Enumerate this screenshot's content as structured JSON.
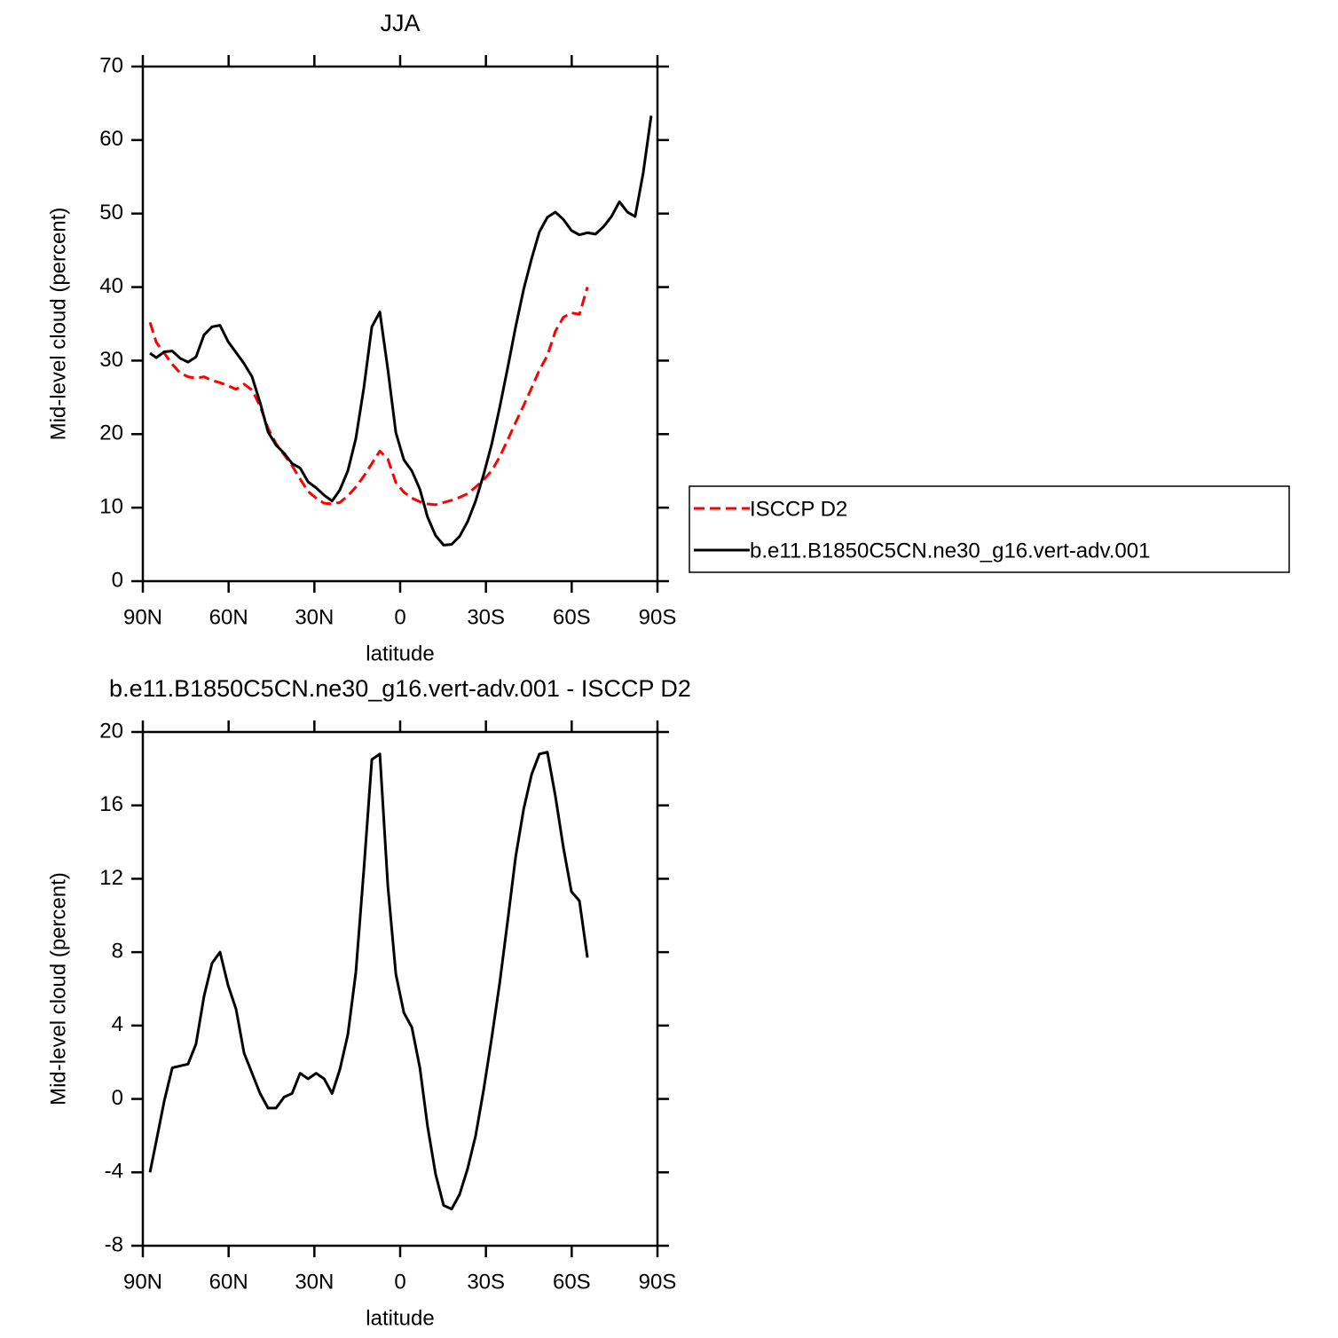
{
  "chart_data": [
    {
      "type": "line",
      "title": "JJA",
      "xlabel": "latitude",
      "ylabel": "Mid-level cloud (percent)",
      "x": [
        87.5,
        85.3,
        82.5,
        79.7,
        76.9,
        74.2,
        71.4,
        68.6,
        65.8,
        63.0,
        60.2,
        57.4,
        54.6,
        51.8,
        49.0,
        46.2,
        43.4,
        40.6,
        37.8,
        35.0,
        32.2,
        29.4,
        26.6,
        23.8,
        21.1,
        18.3,
        15.5,
        12.7,
        9.9,
        7.1,
        4.3,
        1.5,
        -1.3,
        -4.1,
        -6.9,
        -9.6,
        -12.4,
        -15.2,
        -18.0,
        -20.8,
        -23.6,
        -26.4,
        -29.2,
        -32.0,
        -34.8,
        -37.6,
        -40.4,
        -43.2,
        -46.0,
        -48.7,
        -51.5,
        -54.3,
        -57.1,
        -59.9,
        -62.7,
        -65.5,
        -68.3,
        -71.1,
        -73.9,
        -76.7,
        -79.5,
        -82.2,
        -85.0,
        -87.8
      ],
      "series": [
        {
          "name": "ISCCP D2",
          "color": "#ff0000",
          "linestyle": "dashed",
          "values": [
            35.2,
            32.5,
            31.0,
            29.5,
            28.3,
            27.8,
            27.6,
            27.8,
            27.3,
            27.0,
            26.6,
            26.1,
            26.8,
            26.0,
            23.8,
            20.8,
            18.7,
            17.2,
            15.7,
            13.9,
            12.2,
            11.3,
            10.6,
            10.5,
            10.7,
            11.6,
            12.8,
            14.3,
            16.0,
            17.7,
            16.6,
            13.4,
            12.1,
            11.3,
            10.8,
            10.5,
            10.4,
            10.7,
            11.0,
            11.4,
            11.9,
            12.8,
            13.8,
            15.0,
            16.9,
            19.2,
            21.6,
            23.9,
            26.3,
            28.7,
            30.7,
            34.0,
            35.9,
            36.5,
            36.3,
            40.0,
            null,
            null,
            null,
            null,
            null,
            null,
            null,
            null
          ]
        },
        {
          "name": "b.e11.B1850C5CN.ne30_g16.vert-adv.001",
          "color": "#000000",
          "linestyle": "solid",
          "values": [
            31.0,
            30.4,
            31.2,
            31.3,
            30.3,
            29.8,
            30.5,
            33.5,
            34.6,
            34.8,
            32.6,
            31.1,
            29.6,
            27.8,
            24.3,
            20.3,
            18.5,
            17.4,
            16.0,
            15.4,
            13.5,
            12.7,
            11.7,
            10.9,
            12.4,
            15.0,
            19.4,
            26.3,
            34.6,
            36.6,
            28.8,
            20.2,
            16.5,
            15.0,
            12.5,
            8.7,
            6.2,
            4.9,
            5.0,
            6.1,
            8.1,
            10.9,
            14.5,
            18.6,
            23.6,
            29.0,
            34.6,
            39.7,
            43.9,
            47.5,
            49.5,
            50.2,
            49.2,
            47.7,
            47.1,
            47.4,
            47.2,
            48.2,
            49.6,
            51.6,
            50.2,
            49.6,
            55.5,
            63.3
          ]
        }
      ],
      "xlim": [
        90,
        -90
      ],
      "xticks": [
        {
          "value": 90,
          "label": "90N"
        },
        {
          "value": 60,
          "label": "60N"
        },
        {
          "value": 30,
          "label": "30N"
        },
        0,
        {
          "value": -30,
          "label": "30S"
        },
        {
          "value": -60,
          "label": "60S"
        },
        {
          "value": -90,
          "label": "90S"
        }
      ],
      "ylim": [
        0,
        70
      ],
      "yticks": [
        0,
        10,
        20,
        30,
        40,
        50,
        60,
        70
      ],
      "legend": "right"
    },
    {
      "type": "line",
      "title": "b.e11.B1850C5CN.ne30_g16.vert-adv.001 - ISCCP D2",
      "xlabel": "latitude",
      "ylabel": "Mid-level cloud (percent)",
      "x": [
        87.5,
        85.3,
        82.5,
        79.7,
        76.9,
        74.2,
        71.4,
        68.6,
        65.8,
        63.0,
        60.2,
        57.4,
        54.6,
        51.8,
        49.0,
        46.2,
        43.4,
        40.6,
        37.8,
        35.0,
        32.2,
        29.4,
        26.6,
        23.8,
        21.1,
        18.3,
        15.5,
        12.7,
        9.9,
        7.1,
        4.3,
        1.5,
        -1.3,
        -4.1,
        -6.9,
        -9.6,
        -12.4,
        -15.2,
        -18.0,
        -20.8,
        -23.6,
        -26.4,
        -29.2,
        -32.0,
        -34.8,
        -37.6,
        -40.4,
        -43.2,
        -46.0,
        -48.7,
        -51.5,
        -54.3,
        -57.1,
        -59.9,
        -62.7,
        -65.5
      ],
      "series": [
        {
          "color": "#000000",
          "linestyle": "solid",
          "values": [
            -4.0,
            -2.3,
            -0.1,
            1.7,
            1.8,
            1.9,
            3.0,
            5.6,
            7.4,
            8.0,
            6.2,
            4.9,
            2.5,
            1.4,
            0.3,
            -0.5,
            -0.5,
            0.1,
            0.3,
            1.4,
            1.1,
            1.4,
            1.1,
            0.3,
            1.6,
            3.5,
            6.9,
            12.5,
            18.5,
            18.8,
            11.6,
            6.8,
            4.7,
            3.9,
            1.7,
            -1.5,
            -4.1,
            -5.8,
            -6.0,
            -5.2,
            -3.8,
            -2.0,
            0.5,
            3.3,
            6.3,
            9.7,
            13.2,
            15.8,
            17.7,
            18.8,
            18.9,
            16.5,
            13.7,
            11.3,
            10.8,
            7.7
          ]
        }
      ],
      "xlim": [
        90,
        -90
      ],
      "xticks": [
        {
          "value": 90,
          "label": "90N"
        },
        {
          "value": 60,
          "label": "60N"
        },
        {
          "value": 30,
          "label": "30N"
        },
        0,
        {
          "value": -30,
          "label": "30S"
        },
        {
          "value": -60,
          "label": "60S"
        },
        {
          "value": -90,
          "label": "90S"
        }
      ],
      "ylim": [
        -8,
        20
      ],
      "yticks": [
        -8,
        -4,
        0,
        4,
        8,
        12,
        16,
        20
      ]
    }
  ]
}
